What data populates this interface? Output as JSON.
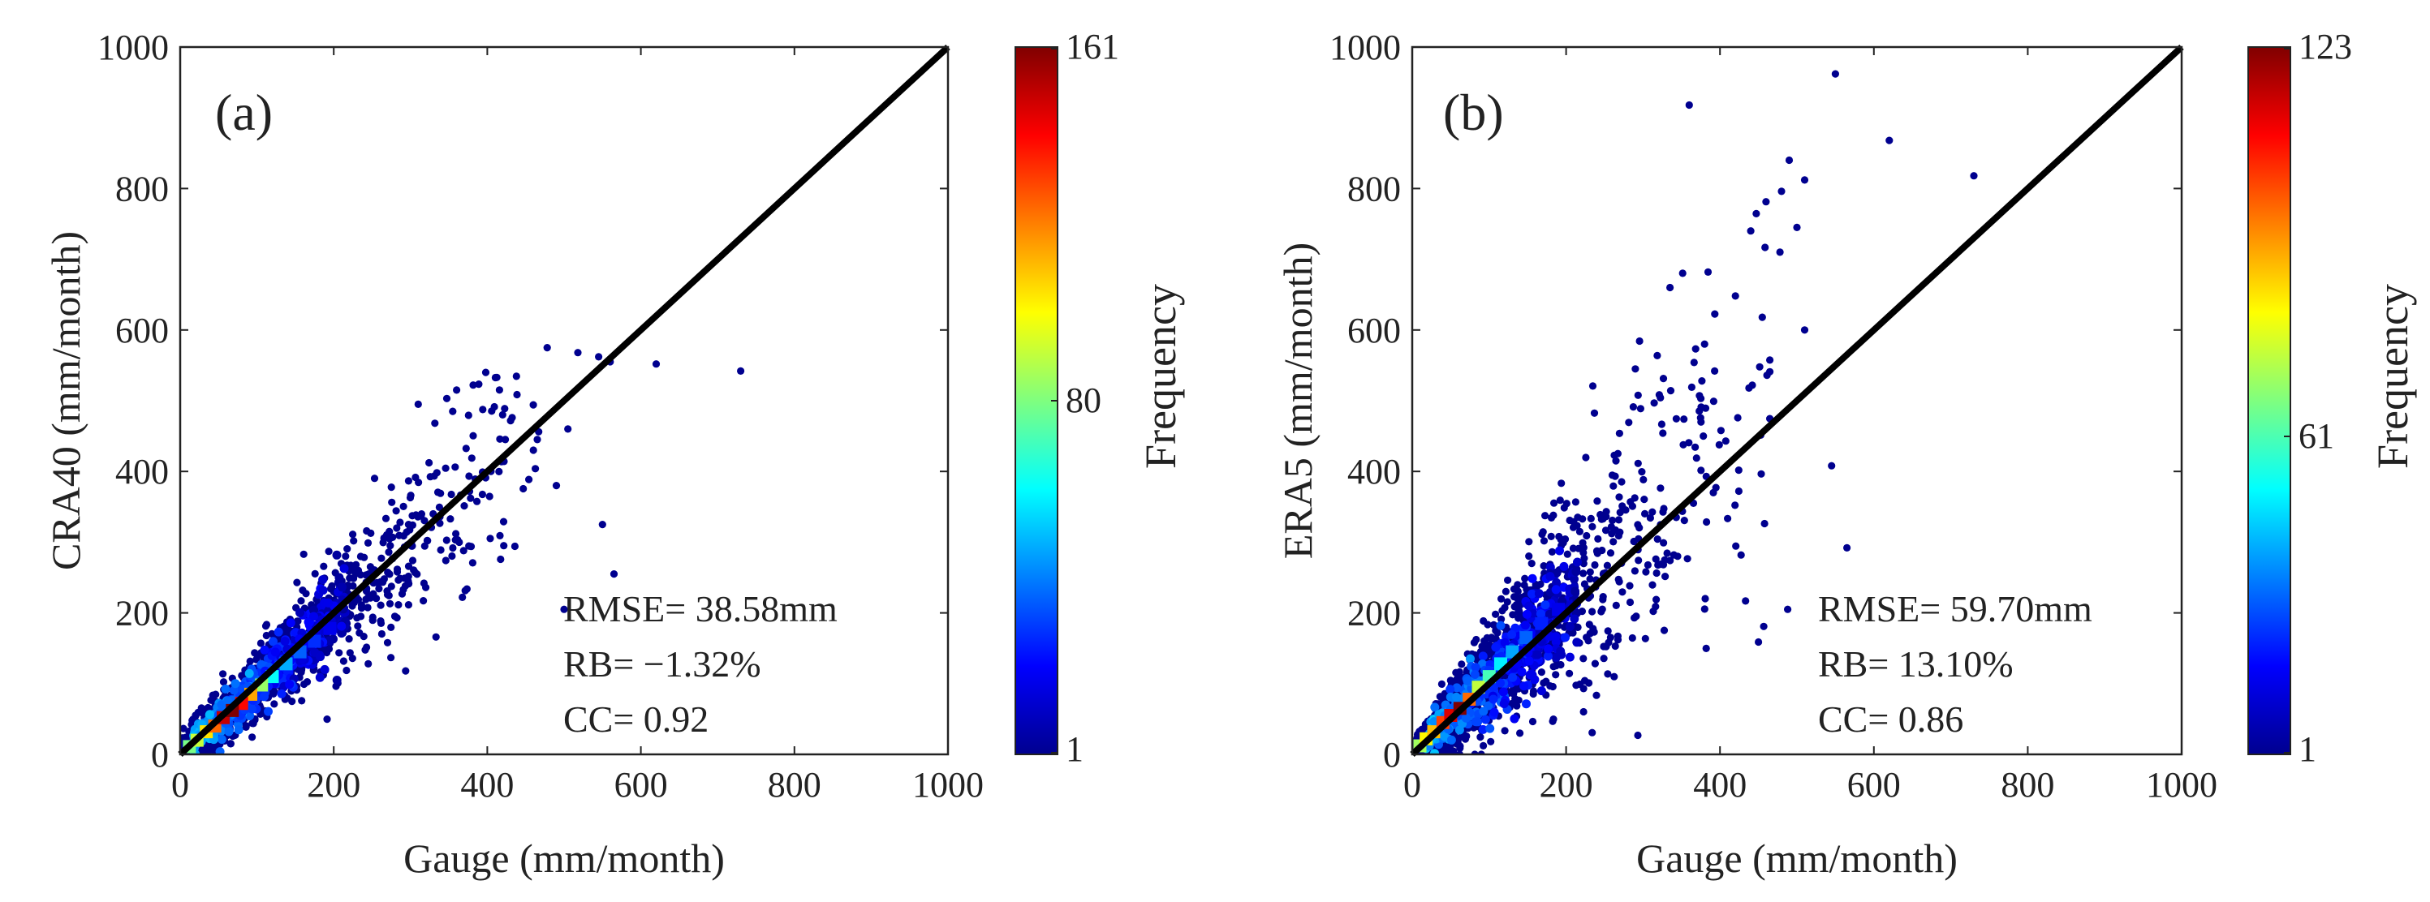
{
  "chart_data": [
    {
      "type": "scatter",
      "panel_label": "(a)",
      "xlabel": "Gauge (mm/month)",
      "ylabel": "CRA40 (mm/month)",
      "xlim": [
        0,
        1000
      ],
      "ylim": [
        0,
        1000
      ],
      "xticks": [
        "0",
        "200",
        "400",
        "600",
        "800",
        "1000"
      ],
      "yticks": [
        "0",
        "200",
        "400",
        "600",
        "800",
        "1000"
      ],
      "reference_line": {
        "slope": 1,
        "intercept": 0,
        "color": "#000000"
      },
      "stats": [
        "RMSE= 38.58mm",
        "RB= −1.32%",
        "CC= 0.92"
      ],
      "colorbar": {
        "title": "Frequency",
        "min_label": "1",
        "mid_label": "80",
        "max_label": "161",
        "min": 1,
        "max": 161,
        "colormap": "jet"
      },
      "density_core": [
        {
          "x": 68,
          "y": 62,
          "freq": 161
        },
        {
          "x": 56,
          "y": 52,
          "freq": 150
        },
        {
          "x": 80,
          "y": 72,
          "freq": 140
        },
        {
          "x": 45,
          "y": 40,
          "freq": 125
        },
        {
          "x": 92,
          "y": 85,
          "freq": 115
        },
        {
          "x": 34,
          "y": 32,
          "freq": 105
        },
        {
          "x": 22,
          "y": 20,
          "freq": 92
        },
        {
          "x": 106,
          "y": 98,
          "freq": 85
        },
        {
          "x": 12,
          "y": 11,
          "freq": 80
        },
        {
          "x": 120,
          "y": 110,
          "freq": 62
        },
        {
          "x": 138,
          "y": 128,
          "freq": 48
        },
        {
          "x": 156,
          "y": 145,
          "freq": 36
        },
        {
          "x": 175,
          "y": 160,
          "freq": 28
        },
        {
          "x": 195,
          "y": 178,
          "freq": 18
        }
      ],
      "outliers": [
        {
          "x": 730,
          "y": 542
        },
        {
          "x": 620,
          "y": 552
        },
        {
          "x": 560,
          "y": 555
        },
        {
          "x": 545,
          "y": 562
        },
        {
          "x": 518,
          "y": 568
        },
        {
          "x": 478,
          "y": 575
        },
        {
          "x": 565,
          "y": 255
        },
        {
          "x": 550,
          "y": 325
        },
        {
          "x": 505,
          "y": 460
        },
        {
          "x": 490,
          "y": 380
        },
        {
          "x": 500,
          "y": 205
        },
        {
          "x": 460,
          "y": 430
        },
        {
          "x": 420,
          "y": 480
        },
        {
          "x": 398,
          "y": 540
        },
        {
          "x": 360,
          "y": 515
        },
        {
          "x": 310,
          "y": 495
        }
      ]
    },
    {
      "type": "scatter",
      "panel_label": "(b)",
      "xlabel": "Gauge (mm/month)",
      "ylabel": "ERA5 (mm/month)",
      "xlim": [
        0,
        1000
      ],
      "ylim": [
        0,
        1000
      ],
      "xticks": [
        "0",
        "200",
        "400",
        "600",
        "800",
        "1000"
      ],
      "yticks": [
        "0",
        "200",
        "400",
        "600",
        "800",
        "1000"
      ],
      "reference_line": {
        "slope": 1,
        "intercept": 0,
        "color": "#000000"
      },
      "stats": [
        "RMSE= 59.70mm",
        "RB= 13.10%",
        "CC= 0.86"
      ],
      "colorbar": {
        "title": "Frequency",
        "min_label": "1",
        "mid_label": "61",
        "max_label": "123",
        "min": 1,
        "max": 123,
        "colormap": "jet"
      },
      "density_core": [
        {
          "x": 62,
          "y": 65,
          "freq": 123
        },
        {
          "x": 50,
          "y": 55,
          "freq": 112
        },
        {
          "x": 40,
          "y": 45,
          "freq": 100
        },
        {
          "x": 74,
          "y": 78,
          "freq": 95
        },
        {
          "x": 28,
          "y": 32,
          "freq": 85
        },
        {
          "x": 18,
          "y": 22,
          "freq": 78
        },
        {
          "x": 86,
          "y": 95,
          "freq": 70
        },
        {
          "x": 10,
          "y": 12,
          "freq": 66
        },
        {
          "x": 100,
          "y": 110,
          "freq": 55
        },
        {
          "x": 115,
          "y": 128,
          "freq": 45
        },
        {
          "x": 130,
          "y": 145,
          "freq": 36
        },
        {
          "x": 148,
          "y": 165,
          "freq": 28
        },
        {
          "x": 168,
          "y": 185,
          "freq": 20
        },
        {
          "x": 190,
          "y": 205,
          "freq": 14
        }
      ],
      "outliers": [
        {
          "x": 550,
          "y": 962
        },
        {
          "x": 360,
          "y": 918
        },
        {
          "x": 620,
          "y": 868
        },
        {
          "x": 490,
          "y": 840
        },
        {
          "x": 730,
          "y": 818
        },
        {
          "x": 510,
          "y": 812
        },
        {
          "x": 480,
          "y": 796
        },
        {
          "x": 500,
          "y": 745
        },
        {
          "x": 478,
          "y": 710
        },
        {
          "x": 440,
          "y": 740
        },
        {
          "x": 455,
          "y": 618
        },
        {
          "x": 420,
          "y": 648
        },
        {
          "x": 510,
          "y": 600
        },
        {
          "x": 545,
          "y": 408
        },
        {
          "x": 565,
          "y": 292
        },
        {
          "x": 488,
          "y": 205
        },
        {
          "x": 335,
          "y": 660
        },
        {
          "x": 380,
          "y": 580
        },
        {
          "x": 290,
          "y": 545
        }
      ]
    }
  ]
}
